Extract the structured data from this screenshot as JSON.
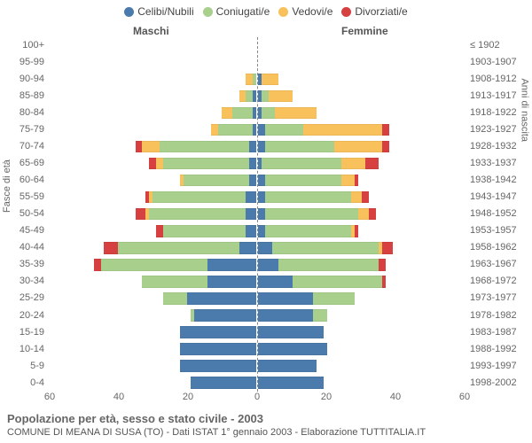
{
  "legend": {
    "items": [
      {
        "label": "Celibi/Nubili",
        "color": "#4b7bac"
      },
      {
        "label": "Coniugati/e",
        "color": "#a9cf8c"
      },
      {
        "label": "Vedovi/e",
        "color": "#f8c15b"
      },
      {
        "label": "Divorziati/e",
        "color": "#d64040"
      }
    ]
  },
  "headers": {
    "male": "Maschi",
    "female": "Femmine"
  },
  "y_title_left": "Fasce di età",
  "y_title_right": "Anni di nascita",
  "x_axis": {
    "max": 60,
    "ticks": [
      60,
      40,
      20,
      0,
      20,
      40,
      60
    ]
  },
  "rows": [
    {
      "age": "100+",
      "birth": "≤ 1902",
      "m": {
        "cel": 0,
        "con": 0,
        "ved": 0,
        "div": 0
      },
      "f": {
        "cel": 0,
        "con": 0,
        "ved": 0,
        "div": 0
      }
    },
    {
      "age": "95-99",
      "birth": "1903-1907",
      "m": {
        "cel": 0,
        "con": 0,
        "ved": 0,
        "div": 0
      },
      "f": {
        "cel": 0,
        "con": 0,
        "ved": 0,
        "div": 0
      }
    },
    {
      "age": "90-94",
      "birth": "1908-1912",
      "m": {
        "cel": 0,
        "con": 1,
        "ved": 2,
        "div": 0
      },
      "f": {
        "cel": 1,
        "con": 0,
        "ved": 5,
        "div": 0
      }
    },
    {
      "age": "85-89",
      "birth": "1913-1917",
      "m": {
        "cel": 1,
        "con": 2,
        "ved": 2,
        "div": 0
      },
      "f": {
        "cel": 1,
        "con": 2,
        "ved": 7,
        "div": 0
      }
    },
    {
      "age": "80-84",
      "birth": "1918-1922",
      "m": {
        "cel": 1,
        "con": 6,
        "ved": 3,
        "div": 0
      },
      "f": {
        "cel": 1,
        "con": 4,
        "ved": 12,
        "div": 0
      }
    },
    {
      "age": "75-79",
      "birth": "1923-1927",
      "m": {
        "cel": 1,
        "con": 10,
        "ved": 2,
        "div": 0
      },
      "f": {
        "cel": 2,
        "con": 11,
        "ved": 23,
        "div": 2
      }
    },
    {
      "age": "70-74",
      "birth": "1928-1932",
      "m": {
        "cel": 2,
        "con": 26,
        "ved": 5,
        "div": 2
      },
      "f": {
        "cel": 2,
        "con": 20,
        "ved": 14,
        "div": 2
      }
    },
    {
      "age": "65-69",
      "birth": "1933-1937",
      "m": {
        "cel": 2,
        "con": 25,
        "ved": 2,
        "div": 2
      },
      "f": {
        "cel": 1,
        "con": 23,
        "ved": 7,
        "div": 4
      }
    },
    {
      "age": "60-64",
      "birth": "1938-1942",
      "m": {
        "cel": 2,
        "con": 19,
        "ved": 1,
        "div": 0
      },
      "f": {
        "cel": 2,
        "con": 22,
        "ved": 4,
        "div": 1
      }
    },
    {
      "age": "55-59",
      "birth": "1943-1947",
      "m": {
        "cel": 3,
        "con": 27,
        "ved": 1,
        "div": 1
      },
      "f": {
        "cel": 2,
        "con": 25,
        "ved": 3,
        "div": 2
      }
    },
    {
      "age": "50-54",
      "birth": "1948-1952",
      "m": {
        "cel": 3,
        "con": 28,
        "ved": 1,
        "div": 3
      },
      "f": {
        "cel": 2,
        "con": 27,
        "ved": 3,
        "div": 2
      }
    },
    {
      "age": "45-49",
      "birth": "1953-1957",
      "m": {
        "cel": 3,
        "con": 24,
        "ved": 0,
        "div": 2
      },
      "f": {
        "cel": 2,
        "con": 25,
        "ved": 1,
        "div": 1
      }
    },
    {
      "age": "40-44",
      "birth": "1958-1962",
      "m": {
        "cel": 5,
        "con": 35,
        "ved": 0,
        "div": 4
      },
      "f": {
        "cel": 4,
        "con": 31,
        "ved": 1,
        "div": 3
      }
    },
    {
      "age": "35-39",
      "birth": "1963-1967",
      "m": {
        "cel": 14,
        "con": 31,
        "ved": 0,
        "div": 2
      },
      "f": {
        "cel": 6,
        "con": 29,
        "ved": 0,
        "div": 2
      }
    },
    {
      "age": "30-34",
      "birth": "1968-1972",
      "m": {
        "cel": 14,
        "con": 19,
        "ved": 0,
        "div": 0
      },
      "f": {
        "cel": 10,
        "con": 26,
        "ved": 0,
        "div": 1
      }
    },
    {
      "age": "25-29",
      "birth": "1973-1977",
      "m": {
        "cel": 20,
        "con": 7,
        "ved": 0,
        "div": 0
      },
      "f": {
        "cel": 16,
        "con": 12,
        "ved": 0,
        "div": 0
      }
    },
    {
      "age": "20-24",
      "birth": "1978-1982",
      "m": {
        "cel": 18,
        "con": 1,
        "ved": 0,
        "div": 0
      },
      "f": {
        "cel": 16,
        "con": 4,
        "ved": 0,
        "div": 0
      }
    },
    {
      "age": "15-19",
      "birth": "1983-1987",
      "m": {
        "cel": 22,
        "con": 0,
        "ved": 0,
        "div": 0
      },
      "f": {
        "cel": 19,
        "con": 0,
        "ved": 0,
        "div": 0
      }
    },
    {
      "age": "10-14",
      "birth": "1988-1992",
      "m": {
        "cel": 22,
        "con": 0,
        "ved": 0,
        "div": 0
      },
      "f": {
        "cel": 20,
        "con": 0,
        "ved": 0,
        "div": 0
      }
    },
    {
      "age": "5-9",
      "birth": "1993-1997",
      "m": {
        "cel": 22,
        "con": 0,
        "ved": 0,
        "div": 0
      },
      "f": {
        "cel": 17,
        "con": 0,
        "ved": 0,
        "div": 0
      }
    },
    {
      "age": "0-4",
      "birth": "1998-2002",
      "m": {
        "cel": 19,
        "con": 0,
        "ved": 0,
        "div": 0
      },
      "f": {
        "cel": 19,
        "con": 0,
        "ved": 0,
        "div": 0
      }
    }
  ],
  "footer": {
    "title": "Popolazione per età, sesso e stato civile - 2003",
    "subtitle": "COMUNE DI MEANA DI SUSA (TO) - Dati ISTAT 1° gennaio 2003 - Elaborazione TUTTITALIA.IT"
  }
}
